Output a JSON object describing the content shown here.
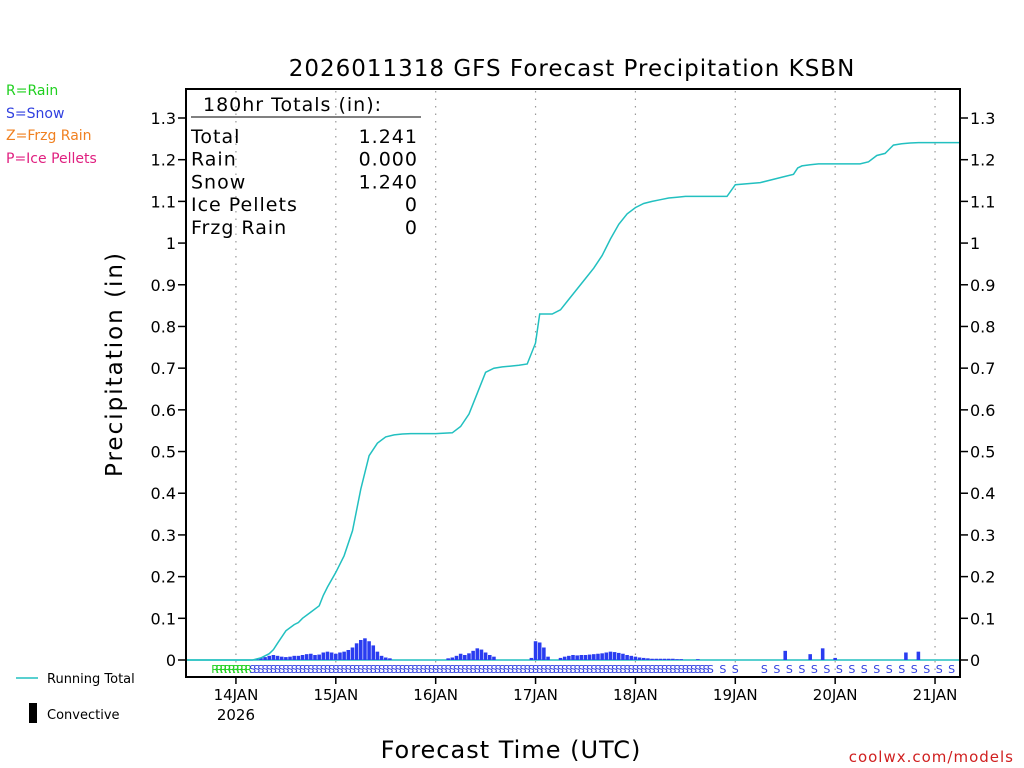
{
  "chart_data": {
    "type": "bar",
    "title": "2026011318 GFS Forecast Precipitation KSBN",
    "xlabel": "Forecast Time (UTC)",
    "ylabel": "Precipitation (in)",
    "ylim": [
      0,
      1.32
    ],
    "grid": "dotted vertical",
    "watermark": "coolwx.com/models",
    "colors": {
      "running_total": "#22c0c0",
      "snow_bar": "#2a3cf0",
      "convective": "#000000",
      "rain": "#20d020",
      "snow": "#3040e0",
      "frzg_rain": "#f08020",
      "ice_pellets": "#e02080",
      "axis": "#000000",
      "grid": "#999999"
    },
    "legend_top": {
      "rain": "R=Rain",
      "snow": "S=Snow",
      "frzg_rain": "Z=Frzg Rain",
      "ice_pellets": "P=Ice Pellets"
    },
    "legend_bottom": {
      "running_total": "Running Total",
      "convective": "Convective"
    },
    "totals_box": {
      "header": "180hr Totals (in):",
      "rows": [
        {
          "label": "Total",
          "value": "1.241"
        },
        {
          "label": "Rain",
          "value": "0.000"
        },
        {
          "label": "Snow",
          "value": "1.240"
        },
        {
          "label": "Ice Pellets",
          "value": "0"
        },
        {
          "label": "Frzg Rain",
          "value": "0"
        }
      ]
    },
    "y_ticks": [
      "0",
      "0.1",
      "0.2",
      "0.3",
      "0.4",
      "0.5",
      "0.6",
      "0.7",
      "0.8",
      "0.9",
      "1",
      "1.1",
      "1.2",
      "1.3"
    ],
    "y_tick_values": [
      0,
      0.1,
      0.2,
      0.3,
      0.4,
      0.5,
      0.6,
      0.7,
      0.8,
      0.9,
      1.0,
      1.1,
      1.2,
      1.3
    ],
    "x_range_hours": [
      -6,
      180
    ],
    "x_ticks": [
      {
        "label": "14JAN",
        "sub": "2026",
        "hour": 6
      },
      {
        "label": "15JAN",
        "sub": "",
        "hour": 30
      },
      {
        "label": "16JAN",
        "sub": "",
        "hour": 54
      },
      {
        "label": "17JAN",
        "sub": "",
        "hour": 78
      },
      {
        "label": "18JAN",
        "sub": "",
        "hour": 102
      },
      {
        "label": "19JAN",
        "sub": "",
        "hour": 126
      },
      {
        "label": "20JAN",
        "sub": "",
        "hour": 150
      },
      {
        "label": "21JAN",
        "sub": "",
        "hour": 174
      }
    ],
    "running_total": {
      "name": "Running Total",
      "x": [
        -6,
        10,
        12,
        14,
        15,
        16,
        18,
        20,
        21,
        22,
        24,
        26,
        27,
        28,
        30,
        32,
        34,
        36,
        38,
        40,
        42,
        44,
        46,
        48,
        50,
        54,
        58,
        60,
        62,
        64,
        66,
        68,
        70,
        72,
        74,
        76,
        78,
        79,
        80,
        81,
        82,
        84,
        86,
        88,
        90,
        92,
        94,
        96,
        98,
        100,
        102,
        104,
        106,
        108,
        110,
        112,
        114,
        116,
        118,
        120,
        122,
        124,
        126,
        132,
        138,
        140,
        141,
        142,
        144,
        146,
        147,
        148,
        150,
        152,
        154,
        156,
        158,
        160,
        162,
        164,
        166,
        168,
        170,
        171,
        172,
        174,
        176,
        180
      ],
      "values": [
        0,
        0,
        0.005,
        0.015,
        0.025,
        0.04,
        0.07,
        0.085,
        0.09,
        0.1,
        0.115,
        0.13,
        0.155,
        0.175,
        0.21,
        0.25,
        0.31,
        0.41,
        0.49,
        0.52,
        0.535,
        0.54,
        0.542,
        0.543,
        0.543,
        0.543,
        0.545,
        0.56,
        0.59,
        0.64,
        0.69,
        0.7,
        0.703,
        0.705,
        0.707,
        0.71,
        0.76,
        0.83,
        0.83,
        0.83,
        0.83,
        0.84,
        0.865,
        0.89,
        0.915,
        0.94,
        0.97,
        1.01,
        1.045,
        1.07,
        1.085,
        1.095,
        1.1,
        1.104,
        1.108,
        1.11,
        1.112,
        1.112,
        1.112,
        1.112,
        1.112,
        1.112,
        1.14,
        1.145,
        1.16,
        1.165,
        1.18,
        1.185,
        1.188,
        1.19,
        1.19,
        1.19,
        1.19,
        1.19,
        1.19,
        1.19,
        1.195,
        1.21,
        1.215,
        1.235,
        1.238,
        1.24,
        1.241,
        1.241,
        1.241,
        1.241,
        1.241,
        1.241
      ]
    },
    "snow_bars": {
      "name": "Snow (3hr)",
      "x": [
        11,
        12,
        13,
        14,
        15,
        16,
        17,
        18,
        19,
        20,
        21,
        22,
        23,
        24,
        25,
        26,
        27,
        28,
        29,
        30,
        31,
        32,
        33,
        34,
        35,
        36,
        37,
        38,
        39,
        40,
        41,
        42,
        43,
        57,
        58,
        59,
        60,
        61,
        62,
        63,
        64,
        65,
        66,
        67,
        68,
        77,
        78,
        79,
        80,
        81,
        84,
        85,
        86,
        87,
        88,
        89,
        90,
        91,
        92,
        93,
        94,
        95,
        96,
        97,
        98,
        99,
        100,
        101,
        102,
        103,
        104,
        105,
        106,
        107,
        108,
        109,
        110,
        111,
        112,
        113,
        117,
        138,
        144,
        147,
        150,
        167,
        170
      ],
      "values": [
        0.003,
        0.005,
        0.007,
        0.01,
        0.012,
        0.01,
        0.008,
        0.007,
        0.008,
        0.01,
        0.01,
        0.012,
        0.014,
        0.015,
        0.012,
        0.013,
        0.018,
        0.02,
        0.018,
        0.015,
        0.018,
        0.02,
        0.024,
        0.03,
        0.04,
        0.048,
        0.052,
        0.045,
        0.035,
        0.02,
        0.01,
        0.006,
        0.004,
        0.004,
        0.006,
        0.01,
        0.015,
        0.012,
        0.016,
        0.022,
        0.028,
        0.025,
        0.018,
        0.012,
        0.008,
        0.005,
        0.045,
        0.042,
        0.03,
        0.008,
        0.005,
        0.008,
        0.01,
        0.012,
        0.011,
        0.012,
        0.012,
        0.013,
        0.014,
        0.015,
        0.016,
        0.018,
        0.02,
        0.019,
        0.017,
        0.015,
        0.012,
        0.01,
        0.008,
        0.006,
        0.005,
        0.004,
        0.003,
        0.003,
        0.003,
        0.003,
        0.003,
        0.003,
        0.002,
        0.002,
        0.002,
        0.022,
        0.014,
        0.028,
        0.005,
        0.018,
        0.02
      ]
    },
    "precip_type_codes": {
      "rain_x": [
        1,
        2,
        3,
        4,
        5,
        6,
        7,
        8,
        9
      ],
      "rain_char": "R",
      "snow_x": [
        10,
        11,
        12,
        13,
        14,
        15,
        16,
        17,
        18,
        19,
        20,
        21,
        22,
        23,
        24,
        25,
        26,
        27,
        28,
        29,
        30,
        31,
        32,
        33,
        34,
        35,
        36,
        37,
        38,
        39,
        40,
        41,
        42,
        43,
        44,
        45,
        46,
        47,
        48,
        49,
        50,
        51,
        52,
        53,
        54,
        55,
        56,
        57,
        58,
        59,
        60,
        61,
        62,
        63,
        64,
        65,
        66,
        67,
        68,
        69,
        70,
        71,
        72,
        73,
        74,
        75,
        76,
        77,
        78,
        79,
        80,
        81,
        82,
        83,
        84,
        85,
        86,
        87,
        88,
        89,
        90,
        91,
        92,
        93,
        94,
        95,
        96,
        97,
        98,
        99,
        100,
        101,
        102,
        103,
        104,
        105,
        106,
        107,
        108,
        109,
        110,
        111,
        112,
        113,
        114,
        115,
        116,
        117,
        118,
        119,
        120,
        123,
        126,
        133,
        136,
        139,
        142,
        145,
        148,
        151,
        154,
        157,
        160,
        163,
        166,
        169,
        172,
        175,
        178
      ],
      "snow_char": "S"
    }
  }
}
